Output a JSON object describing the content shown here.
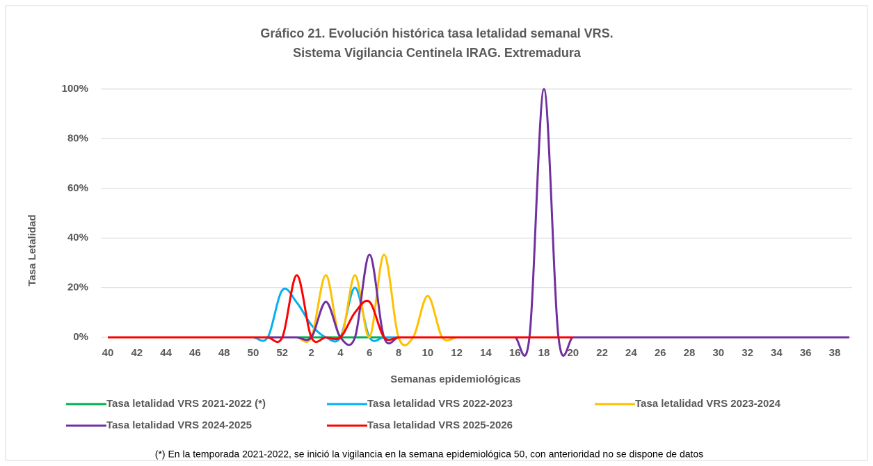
{
  "chart_data": {
    "type": "line",
    "title": "Gráfico 21. Evolución histórica tasa letalidad semanal VRS.",
    "subtitle": "Sistema  Vigilancia Centinela IRAG. Extremadura",
    "x_label": "Semanas epidemiológicas",
    "y_label": "Tasa Letalidad",
    "footnote": "(*) En la temporada 2021-2022, se inició la vigilancia en la semana epidemiológica 50, con anterioridad no se dispone de datos",
    "categories": [
      40,
      null,
      42,
      null,
      44,
      null,
      46,
      null,
      48,
      null,
      50,
      null,
      52,
      null,
      2,
      null,
      4,
      null,
      6,
      null,
      8,
      null,
      10,
      null,
      12,
      null,
      14,
      null,
      16,
      null,
      18,
      null,
      20,
      null,
      22,
      null,
      24,
      null,
      26,
      null,
      28,
      null,
      30,
      null,
      32,
      null,
      34,
      null,
      36,
      null,
      38,
      null
    ],
    "ylim": [
      0,
      100
    ],
    "yticks": [
      {
        "value": 0,
        "label": "0%"
      },
      {
        "value": 20,
        "label": "20%"
      },
      {
        "value": 40,
        "label": "40%"
      },
      {
        "value": 60,
        "label": "60%"
      },
      {
        "value": 80,
        "label": "80%"
      },
      {
        "value": 100,
        "label": "100%"
      }
    ],
    "grid": true,
    "legend": "bottom",
    "series": [
      {
        "name": "Tasa letalidad VRS 2021-2022 (*)",
        "color": "#00b050",
        "values": [
          null,
          null,
          null,
          null,
          null,
          null,
          null,
          null,
          null,
          null,
          0,
          0,
          0,
          0,
          0,
          0,
          0,
          0,
          0,
          0,
          0,
          0,
          0,
          0,
          0,
          0,
          0,
          0,
          0,
          0,
          0,
          0,
          0,
          0,
          0,
          0,
          0,
          0,
          0,
          0,
          0,
          0,
          0,
          0,
          0,
          0,
          0,
          0,
          0,
          0,
          0,
          0
        ]
      },
      {
        "name": "Tasa letalidad VRS 2022-2023",
        "color": "#00b0f0",
        "values": [
          0,
          0,
          0,
          0,
          0,
          0,
          0,
          0,
          0,
          0,
          0,
          0,
          19,
          14,
          5,
          0,
          0,
          20,
          0,
          0,
          0,
          0,
          0,
          0,
          0,
          0,
          0,
          0,
          0,
          0,
          0,
          0,
          0,
          0,
          0,
          0,
          0,
          0,
          0,
          0,
          0,
          0,
          0,
          0,
          0,
          0,
          0,
          0,
          0,
          0,
          0,
          0
        ]
      },
      {
        "name": "Tasa letalidad VRS 2023-2024",
        "color": "#ffc000",
        "values": [
          0,
          0,
          0,
          0,
          0,
          0,
          0,
          0,
          0,
          0,
          0,
          0,
          0,
          0,
          0,
          25,
          0,
          25,
          0,
          33.3,
          0,
          0,
          16.7,
          0,
          0,
          0,
          0,
          0,
          0,
          0,
          0,
          0,
          0,
          0,
          0,
          0,
          0,
          0,
          0,
          0,
          0,
          0,
          0,
          0,
          0,
          0,
          0,
          0,
          0,
          0,
          0,
          0
        ]
      },
      {
        "name": "Tasa letalidad VRS 2024-2025",
        "color": "#7030a0",
        "values": [
          0,
          0,
          0,
          0,
          0,
          0,
          0,
          0,
          0,
          0,
          0,
          0,
          0,
          0,
          0,
          14.3,
          0,
          0,
          33.3,
          0,
          0,
          0,
          0,
          0,
          0,
          0,
          0,
          0,
          0,
          0,
          100,
          0,
          0,
          0,
          0,
          0,
          0,
          0,
          0,
          0,
          0,
          0,
          0,
          0,
          0,
          0,
          0,
          0,
          0,
          0,
          0,
          0
        ]
      },
      {
        "name": "Tasa letalidad VRS 2025-2026",
        "color": "#ff0000",
        "values": [
          0,
          0,
          0,
          0,
          0,
          0,
          0,
          0,
          0,
          0,
          0,
          0,
          0,
          25,
          0,
          0,
          0,
          10,
          14.3,
          0,
          0,
          0,
          0,
          0,
          0,
          0,
          0,
          0,
          0,
          0,
          0,
          0,
          0,
          null,
          null,
          null,
          null,
          null,
          null,
          null,
          null,
          null,
          null,
          null,
          null,
          null,
          null,
          null,
          null,
          null,
          null,
          null
        ]
      }
    ]
  }
}
